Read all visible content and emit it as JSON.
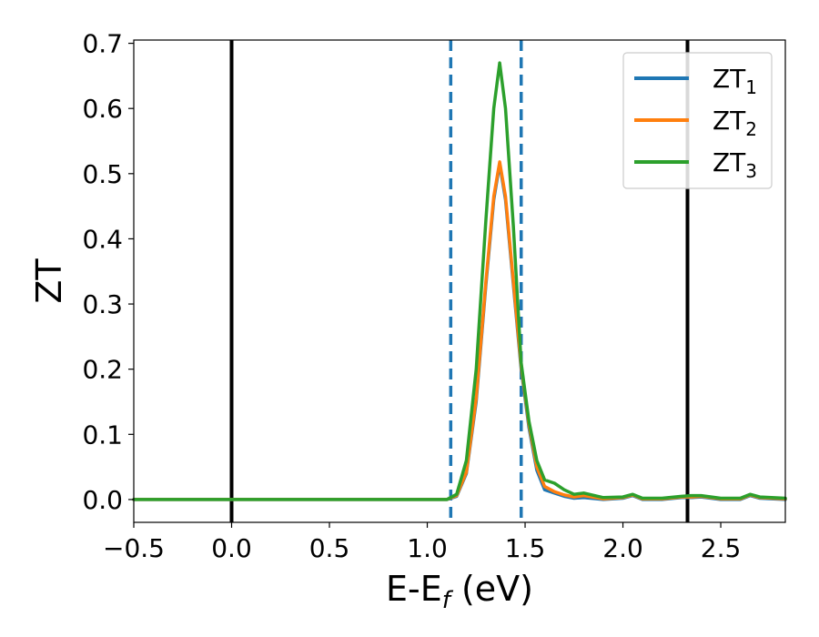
{
  "chart_data": {
    "type": "line",
    "title": "",
    "xlabel": "E-E",
    "xlabel_sub": "f",
    "xlabel_unit": " (eV)",
    "ylabel": "ZT",
    "xlim": [
      -0.5,
      2.83
    ],
    "ylim": [
      -0.035,
      0.705
    ],
    "grid": false,
    "legend_position": "top-right",
    "x_ticks": [
      -0.5,
      0.0,
      0.5,
      1.0,
      1.5,
      2.0,
      2.5
    ],
    "x_tick_labels": [
      "−0.5",
      "0.0",
      "0.5",
      "1.0",
      "1.5",
      "2.0",
      "2.5"
    ],
    "y_ticks": [
      0.0,
      0.1,
      0.2,
      0.3,
      0.4,
      0.5,
      0.6,
      0.7
    ],
    "y_tick_labels": [
      "0.0",
      "0.1",
      "0.2",
      "0.3",
      "0.4",
      "0.5",
      "0.6",
      "0.7"
    ],
    "vertical_lines": [
      {
        "x": 0.0,
        "style": "solid",
        "color": "#000000"
      },
      {
        "x": 1.12,
        "style": "dashed",
        "color": "#1f77b4"
      },
      {
        "x": 1.48,
        "style": "dashed",
        "color": "#1f77b4"
      },
      {
        "x": 2.33,
        "style": "solid",
        "color": "#000000"
      }
    ],
    "series": [
      {
        "name": "ZT",
        "name_sub": "1",
        "color": "#1f77b4",
        "x": [
          -0.5,
          1.0,
          1.1,
          1.15,
          1.2,
          1.25,
          1.3,
          1.34,
          1.37,
          1.4,
          1.44,
          1.48,
          1.52,
          1.56,
          1.6,
          1.65,
          1.7,
          1.75,
          1.8,
          1.9,
          2.0,
          2.05,
          2.1,
          2.2,
          2.3,
          2.35,
          2.4,
          2.5,
          2.6,
          2.65,
          2.7,
          2.83
        ],
        "y": [
          0.0,
          0.0,
          0.0,
          0.005,
          0.04,
          0.15,
          0.33,
          0.46,
          0.515,
          0.46,
          0.33,
          0.2,
          0.11,
          0.045,
          0.015,
          0.01,
          0.005,
          0.002,
          0.003,
          0.0,
          0.002,
          0.006,
          0.0,
          0.0,
          0.003,
          0.003,
          0.004,
          0.0,
          0.0,
          0.006,
          0.002,
          0.0
        ]
      },
      {
        "name": "ZT",
        "name_sub": "2",
        "color": "#ff7f0e",
        "x": [
          -0.5,
          1.0,
          1.1,
          1.15,
          1.2,
          1.25,
          1.3,
          1.34,
          1.37,
          1.4,
          1.44,
          1.48,
          1.52,
          1.56,
          1.6,
          1.65,
          1.7,
          1.75,
          1.8,
          1.9,
          2.0,
          2.05,
          2.1,
          2.2,
          2.3,
          2.35,
          2.4,
          2.5,
          2.6,
          2.65,
          2.7,
          2.83
        ],
        "y": [
          0.0,
          0.0,
          0.0,
          0.006,
          0.042,
          0.155,
          0.335,
          0.465,
          0.518,
          0.465,
          0.335,
          0.205,
          0.115,
          0.05,
          0.02,
          0.012,
          0.007,
          0.004,
          0.006,
          0.001,
          0.003,
          0.007,
          0.001,
          0.001,
          0.004,
          0.004,
          0.005,
          0.001,
          0.001,
          0.007,
          0.003,
          0.001
        ]
      },
      {
        "name": "ZT",
        "name_sub": "3",
        "color": "#2ca02c",
        "x": [
          -0.5,
          1.0,
          1.1,
          1.15,
          1.2,
          1.25,
          1.3,
          1.34,
          1.37,
          1.4,
          1.44,
          1.48,
          1.52,
          1.56,
          1.6,
          1.65,
          1.7,
          1.75,
          1.8,
          1.9,
          2.0,
          2.05,
          2.1,
          2.2,
          2.3,
          2.35,
          2.4,
          2.5,
          2.6,
          2.65,
          2.7,
          2.83
        ],
        "y": [
          0.0,
          0.0,
          0.0,
          0.008,
          0.06,
          0.2,
          0.43,
          0.6,
          0.67,
          0.6,
          0.42,
          0.21,
          0.12,
          0.06,
          0.03,
          0.025,
          0.015,
          0.008,
          0.01,
          0.003,
          0.004,
          0.008,
          0.002,
          0.002,
          0.005,
          0.006,
          0.006,
          0.002,
          0.002,
          0.008,
          0.004,
          0.002
        ]
      }
    ]
  }
}
